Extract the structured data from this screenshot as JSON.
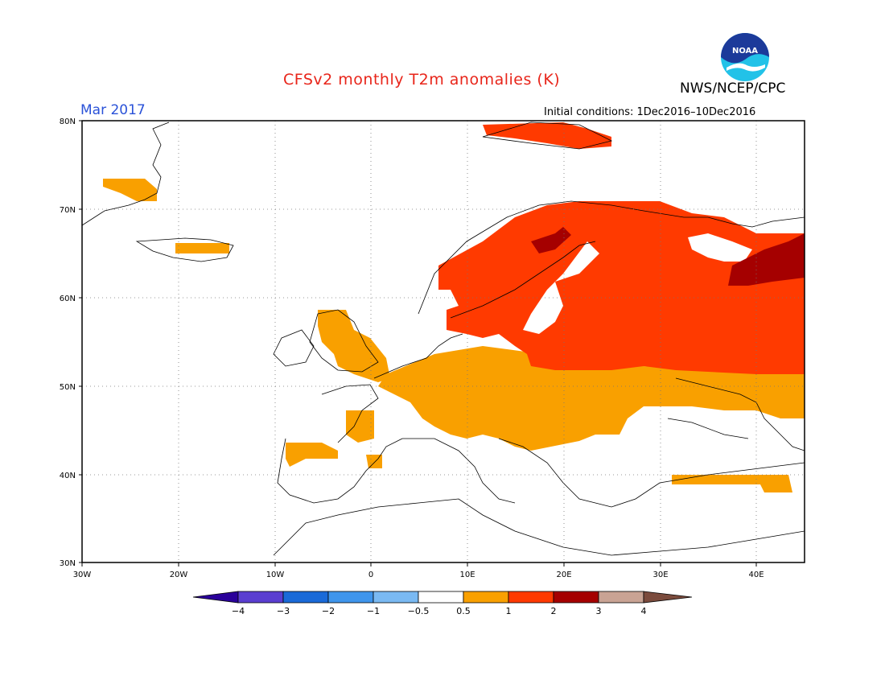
{
  "title": "CFSv2 monthly T2m anomalies (K)",
  "agency": "NWS/NCEP/CPC",
  "logo_text": "NOAA",
  "month": "Mar 2017",
  "initial_conditions": "Initial conditions: 1Dec2016–10Dec2016",
  "map": {
    "lon_range": [
      -30,
      45
    ],
    "lat_range": [
      30,
      80
    ],
    "lat_ticks": [
      {
        "value": 80,
        "label": "80N"
      },
      {
        "value": 70,
        "label": "70N"
      },
      {
        "value": 60,
        "label": "60N"
      },
      {
        "value": 50,
        "label": "50N"
      },
      {
        "value": 40,
        "label": "40N"
      },
      {
        "value": 30,
        "label": "30N"
      }
    ],
    "lon_ticks": [
      {
        "value": -30,
        "label": "30W"
      },
      {
        "value": -20,
        "label": "20W"
      },
      {
        "value": -10,
        "label": "10W"
      },
      {
        "value": 0,
        "label": "0"
      },
      {
        "value": 10,
        "label": "10E"
      },
      {
        "value": 20,
        "label": "20E"
      },
      {
        "value": 30,
        "label": "30E"
      },
      {
        "value": 40,
        "label": "40E"
      }
    ],
    "gridlines": "dotted",
    "anomaly_colors": {
      "0.5-1": "#f9a000",
      "1-2": "#ff3a00",
      "2-3": "#a50000"
    }
  },
  "colorbar": {
    "labels": [
      "−4",
      "−3",
      "−2",
      "−1",
      "−0.5",
      "0.5",
      "1",
      "2",
      "3",
      "4"
    ],
    "colors": [
      "#2a009a",
      "#5a3ed0",
      "#1a6ad8",
      "#3f95ec",
      "#7ab9f2",
      "#ffffff",
      "#f9a000",
      "#ff3a00",
      "#a50000",
      "#c9a394",
      "#7b4b3d"
    ]
  }
}
